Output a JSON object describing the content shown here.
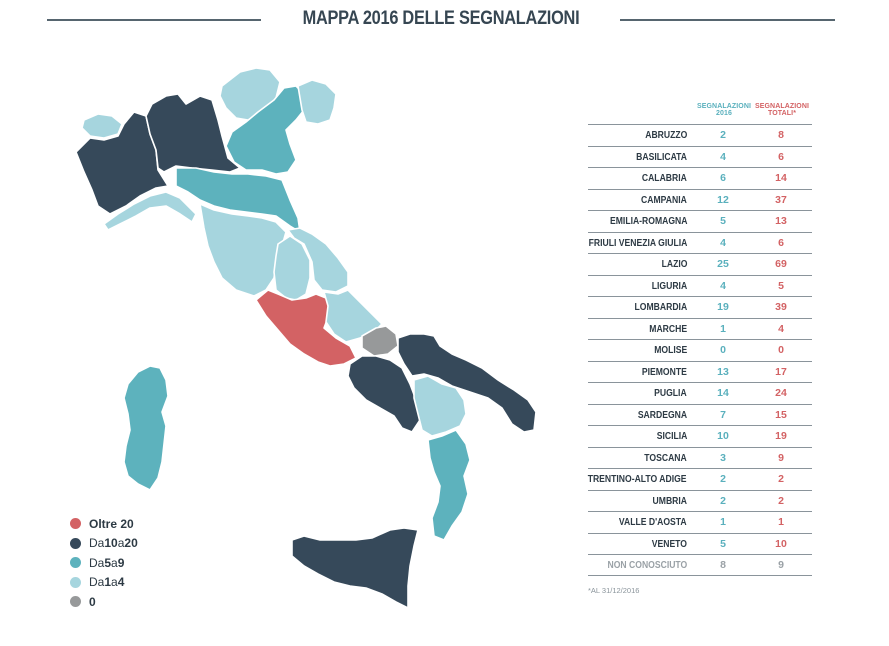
{
  "header": {
    "title": "MAPPA 2016 DELLE SEGNALAZIONI"
  },
  "colors": {
    "oltre20": "#d36264",
    "da10a20": "#36495a",
    "da5a9": "#5db2bd",
    "da1a4": "#a6d5de",
    "zero": "#97999a",
    "border": "#ffffff"
  },
  "legend": [
    {
      "color": "#d36264",
      "parts": [
        {
          "t": "Oltre 20",
          "b": true
        }
      ]
    },
    {
      "color": "#36495a",
      "parts": [
        {
          "t": "Da ",
          "b": false
        },
        {
          "t": "10",
          "b": true
        },
        {
          "t": " a ",
          "b": false
        },
        {
          "t": "20",
          "b": true
        }
      ]
    },
    {
      "color": "#5db2bd",
      "parts": [
        {
          "t": "Da ",
          "b": false
        },
        {
          "t": "5",
          "b": true
        },
        {
          "t": " a ",
          "b": false
        },
        {
          "t": "9",
          "b": true
        }
      ]
    },
    {
      "color": "#a6d5de",
      "parts": [
        {
          "t": "Da ",
          "b": false
        },
        {
          "t": "1",
          "b": true
        },
        {
          "t": " a ",
          "b": false
        },
        {
          "t": "4",
          "b": true
        }
      ]
    },
    {
      "color": "#97999a",
      "parts": [
        {
          "t": "0",
          "b": true
        }
      ]
    }
  ],
  "chart_data": {
    "type": "table",
    "title": "MAPPA 2016 DELLE SEGNALAZIONI",
    "columns": [
      "SEGNALAZIONI 2016",
      "SEGNALAZIONI TOTALI*"
    ],
    "rows": [
      {
        "region": "ABRUZZO",
        "s2016": 2,
        "totali": 8
      },
      {
        "region": "BASILICATA",
        "s2016": 4,
        "totali": 6
      },
      {
        "region": "CALABRIA",
        "s2016": 6,
        "totali": 14
      },
      {
        "region": "CAMPANIA",
        "s2016": 12,
        "totali": 37
      },
      {
        "region": "EMILIA-ROMAGNA",
        "s2016": 5,
        "totali": 13
      },
      {
        "region": "FRIULI VENEZIA GIULIA",
        "s2016": 4,
        "totali": 6
      },
      {
        "region": "LAZIO",
        "s2016": 25,
        "totali": 69
      },
      {
        "region": "LIGURIA",
        "s2016": 4,
        "totali": 5
      },
      {
        "region": "LOMBARDIA",
        "s2016": 19,
        "totali": 39
      },
      {
        "region": "MARCHE",
        "s2016": 1,
        "totali": 4
      },
      {
        "region": "MOLISE",
        "s2016": 0,
        "totali": 0
      },
      {
        "region": "PIEMONTE",
        "s2016": 13,
        "totali": 17
      },
      {
        "region": "PUGLIA",
        "s2016": 14,
        "totali": 24
      },
      {
        "region": "SARDEGNA",
        "s2016": 7,
        "totali": 15
      },
      {
        "region": "SICILIA",
        "s2016": 10,
        "totali": 19
      },
      {
        "region": "TOSCANA",
        "s2016": 3,
        "totali": 9
      },
      {
        "region": "TRENTINO-ALTO ADIGE",
        "s2016": 2,
        "totali": 2
      },
      {
        "region": "UMBRIA",
        "s2016": 2,
        "totali": 2
      },
      {
        "region": "VALLE D'AOSTA",
        "s2016": 1,
        "totali": 1
      },
      {
        "region": "VENETO",
        "s2016": 5,
        "totali": 10
      },
      {
        "region": "NON CONOSCIUTO",
        "s2016": 8,
        "totali": 9,
        "unknown": true
      }
    ],
    "footnote": "*AL 31/12/2016"
  }
}
